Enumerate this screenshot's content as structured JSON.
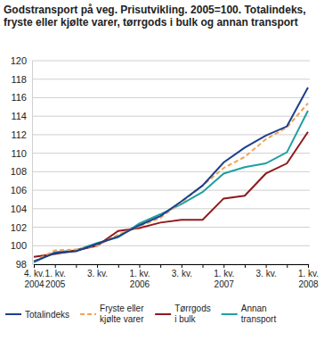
{
  "chart_data": {
    "type": "line",
    "title": "Godstransport på veg. Prisutvikling. 2005=100. Totalindeks, fryste eller kjølte varer, tørrgods i bulk og annan transport",
    "categories": [
      "4. kv.\n2004",
      "1. kv.\n2005",
      null,
      "3. kv.",
      null,
      "1. kv.\n2006",
      null,
      "3. kv.",
      null,
      "1. kv.\n2007",
      null,
      "3. kv.",
      null,
      "1. kv.\n2008"
    ],
    "series": [
      {
        "name": "Totalindeks",
        "color": "#1b3f8b",
        "line_style": "solid",
        "values": [
          98.3,
          99.2,
          99.4,
          100.2,
          101.0,
          102.2,
          103.2,
          104.8,
          106.5,
          109.0,
          110.6,
          111.9,
          112.9,
          117.1
        ]
      },
      {
        "name": "Fryste eller\nkjølte varer",
        "color": "#f2a354",
        "line_style": "dashed",
        "values": [
          98.3,
          99.5,
          99.6,
          100.0,
          101.2,
          102.1,
          103.0,
          104.7,
          106.5,
          108.4,
          109.6,
          111.5,
          112.8,
          115.4
        ]
      },
      {
        "name": "Tørrgods\ni bulk",
        "color": "#8e1b1e",
        "line_style": "solid",
        "values": [
          98.8,
          99.1,
          99.5,
          100.0,
          101.6,
          101.9,
          102.5,
          102.8,
          102.8,
          105.1,
          105.4,
          107.8,
          108.9,
          112.3
        ]
      },
      {
        "name": "Annan\ntransport",
        "color": "#1f9fa3",
        "line_style": "solid",
        "values": [
          98.2,
          99.3,
          99.5,
          100.3,
          100.9,
          102.4,
          103.4,
          104.5,
          105.8,
          107.8,
          108.5,
          108.9,
          110.1,
          114.6
        ]
      }
    ],
    "ylim": [
      98,
      120
    ],
    "yticks": [
      98,
      100,
      102,
      104,
      106,
      108,
      110,
      112,
      114,
      116,
      118,
      120
    ],
    "grid": true,
    "legend": "bottom"
  }
}
